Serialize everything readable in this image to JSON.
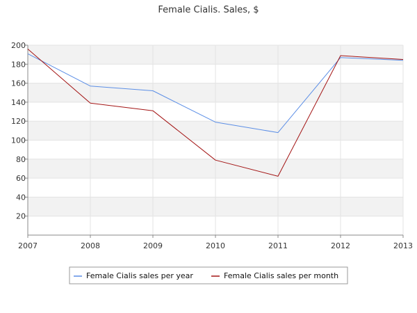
{
  "chart_data": {
    "type": "line",
    "title": "Female Cialis. Sales, $",
    "xlabel": "",
    "ylabel": "",
    "x": [
      "2007",
      "2008",
      "2009",
      "2010",
      "2011",
      "2012",
      "2013"
    ],
    "y_ticks": [
      "20",
      "40",
      "60",
      "80",
      "100",
      "120",
      "140",
      "160",
      "180",
      "200"
    ],
    "ylim": [
      0,
      200
    ],
    "grid": true,
    "legend_position": "bottom-center",
    "series": [
      {
        "name": "Female Cialis sales per year",
        "color": "#5b8ee6",
        "values": [
          191,
          157,
          152,
          119,
          108,
          187,
          184
        ]
      },
      {
        "name": "Female Cialis sales per month",
        "color": "#a31414",
        "values": [
          196,
          139,
          131,
          79,
          62,
          189,
          185
        ]
      }
    ]
  }
}
